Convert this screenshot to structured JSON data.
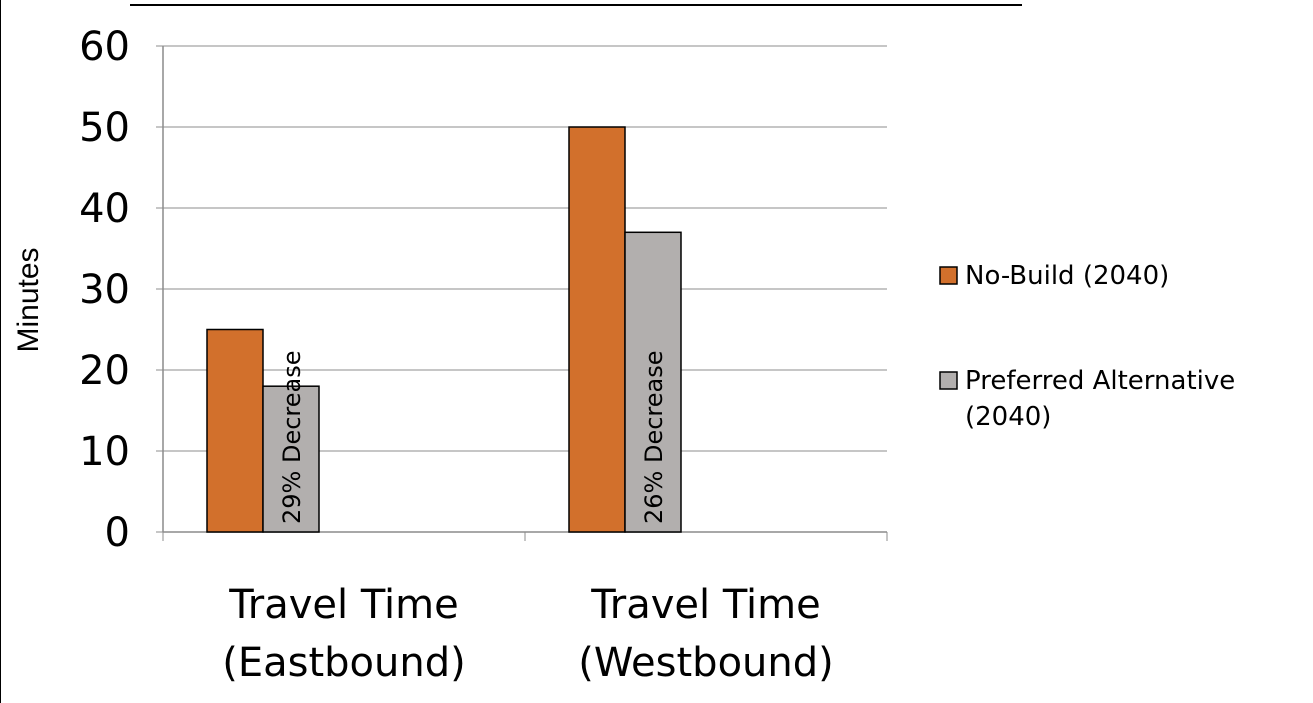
{
  "chart_data": {
    "type": "bar",
    "title": "",
    "xlabel": "",
    "ylabel": "Minutes",
    "ylim": [
      0,
      60
    ],
    "yticks": [
      0,
      10,
      20,
      30,
      40,
      50,
      60
    ],
    "grid": true,
    "legend_position": "right",
    "categories": [
      [
        "Travel Time",
        "(Eastbound)"
      ],
      [
        "Travel Time",
        "(Westbound)"
      ]
    ],
    "series": [
      {
        "name": "No-Build (2040)",
        "values": [
          25,
          50
        ],
        "color": "#D2702C"
      },
      {
        "name": "Preferred Alternative (2040)",
        "legend_lines": [
          "Preferred Alternative",
          "(2040)"
        ],
        "values": [
          18,
          37
        ],
        "color": "#B2AFAE"
      }
    ],
    "annotations": [
      {
        "category_index": 0,
        "series_index": 1,
        "text": "29% Decrease"
      },
      {
        "category_index": 1,
        "series_index": 1,
        "text": "26% Decrease"
      }
    ]
  }
}
